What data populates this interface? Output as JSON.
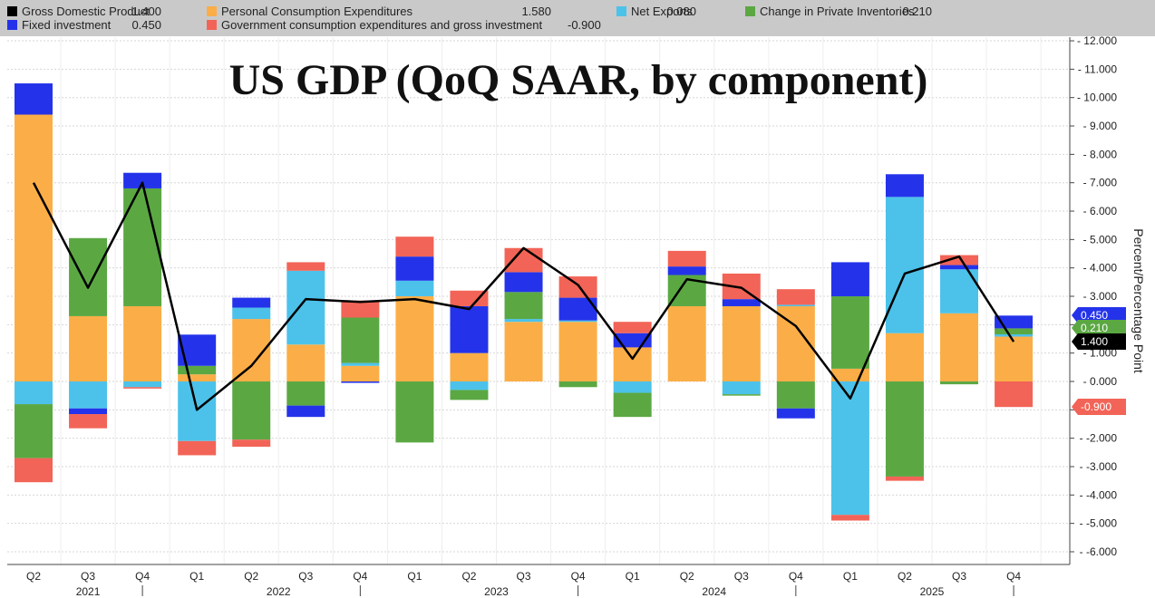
{
  "chart_data": {
    "type": "bar",
    "stacked": true,
    "title": "US GDP (QoQ SAAR, by component)",
    "ylabel": "Percent/Percentage Point",
    "ylim": [
      -6.5,
      12.2
    ],
    "yticks": [
      12,
      11,
      10,
      9,
      8,
      7,
      6,
      5,
      4,
      3,
      2,
      1,
      0,
      -1,
      -2,
      -3,
      -4,
      -5,
      -6
    ],
    "ytick_labels": [
      "12.000",
      "11.000",
      "10.000",
      "9.000",
      "8.000",
      "7.000",
      "6.000",
      "5.000",
      "4.000",
      "3.000",
      "2.000",
      "1.000",
      "0.000",
      "-1.000",
      "-2.000",
      "-3.000",
      "-4.000",
      "-5.000",
      "-6.000"
    ],
    "grid": true,
    "legend_position": "top",
    "categories": [
      "Q2",
      "Q3",
      "Q4",
      "Q1",
      "Q2",
      "Q3",
      "Q4",
      "Q1",
      "Q2",
      "Q3",
      "Q4",
      "Q1",
      "Q2",
      "Q3",
      "Q4",
      "Q1",
      "Q2",
      "Q3",
      "Q4"
    ],
    "years": [
      {
        "label": "2021",
        "start": 0,
        "end": 2
      },
      {
        "label": "2022",
        "start": 3,
        "end": 6
      },
      {
        "label": "2023",
        "start": 7,
        "end": 10
      },
      {
        "label": "2024",
        "start": 11,
        "end": 14
      },
      {
        "label": "2025",
        "start": 15,
        "end": 18
      }
    ],
    "legend": [
      {
        "key": "gdp",
        "label": "Gross Domestic Product",
        "value": "1.400",
        "color": "#000000"
      },
      {
        "key": "pce",
        "label": "Personal Consumption Expenditures",
        "value": "1.580",
        "color": "#fbae47"
      },
      {
        "key": "nx",
        "label": "Net Exports",
        "value": "0.080",
        "color": "#4cc2ea"
      },
      {
        "key": "inv",
        "label": "Change in Private Inventories",
        "value": "0.210",
        "color": "#5ba843"
      },
      {
        "key": "fix",
        "label": "Fixed investment",
        "value": "0.450",
        "color": "#2433ea"
      },
      {
        "key": "gov",
        "label": "Government consumption expenditures and gross investment",
        "value": "-0.900",
        "color": "#f26457"
      }
    ],
    "series": [
      {
        "key": "pce",
        "values": [
          9.4,
          2.3,
          2.65,
          0.25,
          2.2,
          1.3,
          0.55,
          3.0,
          1.0,
          2.1,
          2.1,
          1.2,
          2.65,
          2.65,
          2.65,
          0.45,
          1.7,
          2.4,
          1.58
        ]
      },
      {
        "key": "nx",
        "values": [
          -0.8,
          -0.95,
          -0.2,
          -2.1,
          0.4,
          2.6,
          0.1,
          0.55,
          -0.3,
          0.1,
          0.05,
          -0.4,
          0.0,
          -0.45,
          0.05,
          -4.7,
          4.8,
          1.55,
          0.08
        ]
      },
      {
        "key": "inv",
        "values": [
          -1.9,
          2.75,
          4.15,
          0.3,
          -2.05,
          -0.85,
          1.6,
          -2.15,
          -0.35,
          0.95,
          -0.2,
          -0.85,
          1.1,
          -0.05,
          -0.95,
          2.55,
          -3.35,
          -0.1,
          0.21
        ]
      },
      {
        "key": "fix",
        "values": [
          1.1,
          -0.2,
          0.55,
          1.1,
          0.35,
          -0.4,
          -0.05,
          0.85,
          1.65,
          0.7,
          0.8,
          0.5,
          0.3,
          0.25,
          -0.35,
          1.2,
          0.8,
          0.15,
          0.45
        ]
      },
      {
        "key": "gov",
        "values": [
          -0.85,
          -0.5,
          -0.05,
          -0.5,
          -0.25,
          0.3,
          0.6,
          0.7,
          0.55,
          0.85,
          0.75,
          0.4,
          0.55,
          0.9,
          0.55,
          -0.2,
          -0.15,
          0.35,
          -0.9
        ]
      }
    ],
    "gdp_line": [
      7.0,
      3.3,
      7.0,
      -1.0,
      0.55,
      2.9,
      2.8,
      2.9,
      2.55,
      4.7,
      3.4,
      0.8,
      3.6,
      3.3,
      1.95,
      -0.6,
      3.8,
      4.4,
      1.4
    ],
    "flags": [
      {
        "key": "fix",
        "value": "0.450",
        "color": "#2433ea",
        "text_color": "#ffffff"
      },
      {
        "key": "inv",
        "value": "0.210",
        "color": "#5ba843",
        "text_color": "#ffffff"
      },
      {
        "key": "gdp",
        "value": "1.400",
        "color": "#000000",
        "text_color": "#ffffff"
      },
      {
        "key": "gov",
        "value": "-0.900",
        "color": "#f26457",
        "text_color": "#ffffff"
      }
    ]
  }
}
